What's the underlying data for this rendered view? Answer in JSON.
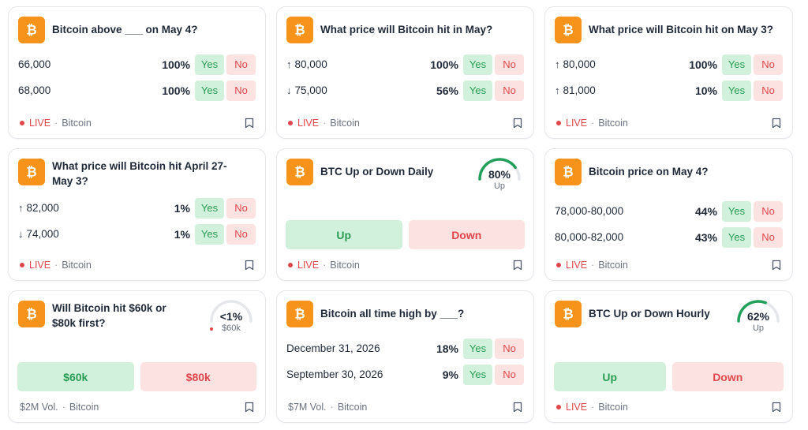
{
  "colors": {
    "bitcoin_orange": "#f7931a",
    "yes_green": "#2a9d55",
    "no_red": "#e0474c",
    "gauge_green": "#22a05b",
    "gauge_red": "#e0474c"
  },
  "cards": [
    {
      "title": "Bitcoin above ___ on May 4?",
      "rows": [
        {
          "label": "66,000",
          "pct": "100%"
        },
        {
          "label": "68,000",
          "pct": "100%"
        }
      ],
      "footer": {
        "status": "LIVE",
        "category": "Bitcoin"
      }
    },
    {
      "title": "What price will Bitcoin hit in May?",
      "rows": [
        {
          "arrow": "↑",
          "label": "80,000",
          "pct": "100%"
        },
        {
          "arrow": "↓",
          "label": "75,000",
          "pct": "56%"
        }
      ],
      "footer": {
        "status": "LIVE",
        "category": "Bitcoin"
      }
    },
    {
      "title": "What price will Bitcoin hit on May 3?",
      "rows": [
        {
          "arrow": "↑",
          "label": "80,000",
          "pct": "100%"
        },
        {
          "arrow": "↑",
          "label": "81,000",
          "pct": "10%"
        }
      ],
      "footer": {
        "status": "LIVE",
        "category": "Bitcoin"
      }
    },
    {
      "title_line1": "What price will Bitcoin hit April 27-",
      "title_line2": "May 3?",
      "rows": [
        {
          "arrow": "↑",
          "label": "82,000",
          "pct": "1%"
        },
        {
          "arrow": "↓",
          "label": "74,000",
          "pct": "1%"
        }
      ],
      "footer": {
        "status": "LIVE",
        "category": "Bitcoin"
      }
    },
    {
      "title": "BTC Up or Down Daily",
      "gauge": {
        "value": "80%",
        "sub": "Up",
        "fraction": 0.8
      },
      "up_label": "Up",
      "down_label": "Down",
      "footer": {
        "status": "LIVE",
        "category": "Bitcoin"
      }
    },
    {
      "title": "Bitcoin price on May 4?",
      "rows": [
        {
          "label": "78,000-80,000",
          "pct": "44%"
        },
        {
          "label": "80,000-82,000",
          "pct": "43%"
        }
      ],
      "footer": {
        "status": "LIVE",
        "category": "Bitcoin"
      }
    },
    {
      "title_line1": "Will Bitcoin hit $60k or",
      "title_line2": "$80k first?",
      "gauge": {
        "value": "<1%",
        "sub": "$60k",
        "fraction": 0.01
      },
      "up_label": "$60k",
      "down_label": "$80k",
      "footer": {
        "volume": "$2M Vol.",
        "category": "Bitcoin"
      }
    },
    {
      "title": "Bitcoin all time high by ___?",
      "rows": [
        {
          "label": "December 31, 2026",
          "pct": "18%"
        },
        {
          "label": "September 30, 2026",
          "pct": "9%"
        }
      ],
      "footer": {
        "volume": "$7M Vol.",
        "category": "Bitcoin"
      }
    },
    {
      "title": "BTC Up or Down Hourly",
      "gauge": {
        "value": "62%",
        "sub": "Up",
        "fraction": 0.62
      },
      "up_label": "Up",
      "down_label": "Down",
      "footer": {
        "status": "LIVE",
        "category": "Bitcoin"
      }
    }
  ],
  "buttons": {
    "yes": "Yes",
    "no": "No"
  },
  "footer_sep": "·",
  "icons": {
    "logo": "bitcoin-icon",
    "bookmark": "bookmark-icon",
    "live": "live-dot-icon"
  }
}
